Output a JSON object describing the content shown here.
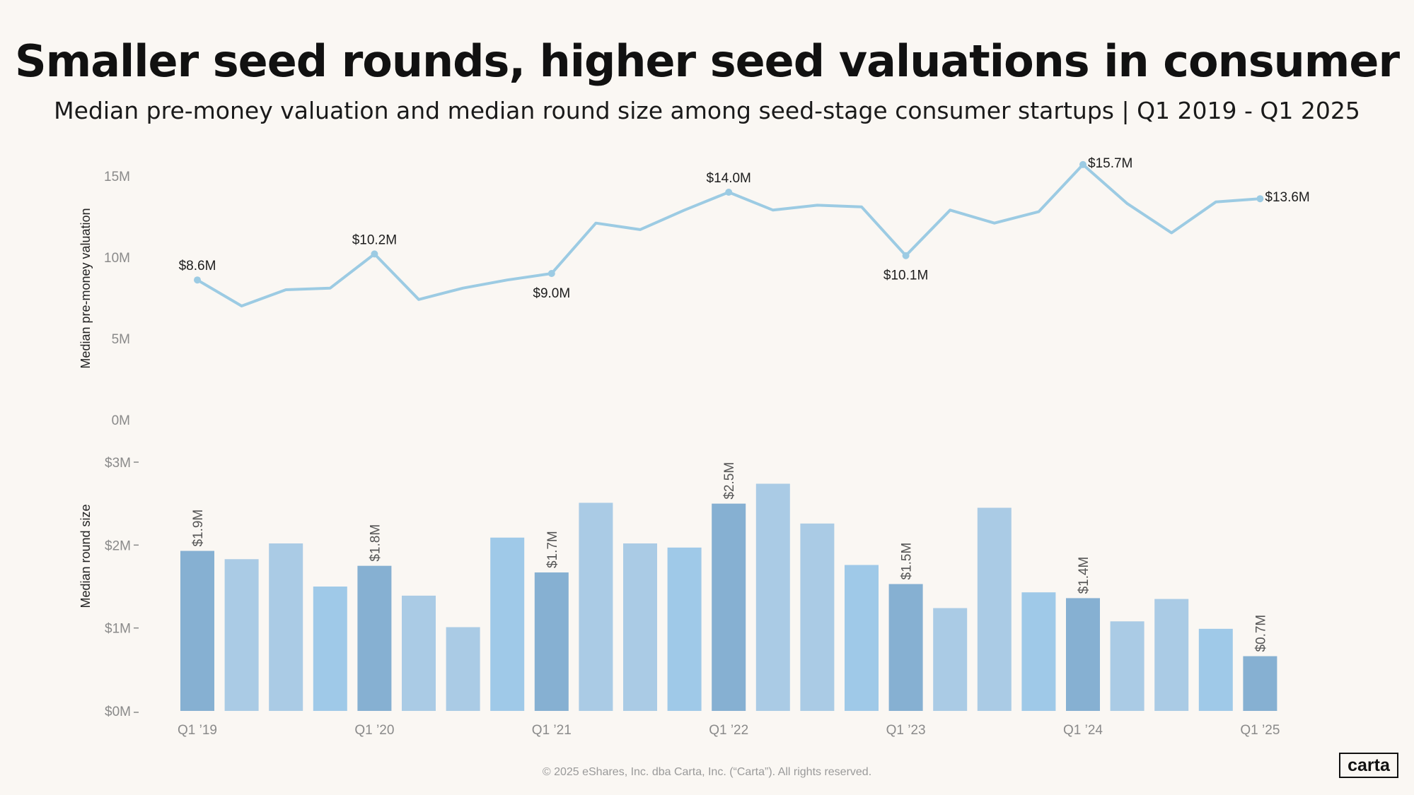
{
  "title": "Smaller seed rounds, higher seed valuations in consumer",
  "subtitle": "Median pre-money valuation and median round size among seed-stage consumer startups | Q1 2019 - Q1 2025",
  "footer": "© 2025 eShares, Inc. dba Carta, Inc. (“Carta”). All rights reserved.",
  "logo": "carta",
  "colors": {
    "line": "#9ccbe3",
    "bar_q1": "#86b0d2",
    "bar_a": "#aacbe5",
    "bar_b": "#9fc9e8"
  },
  "chart_data": [
    {
      "type": "line",
      "title": "Median pre-money valuation",
      "ylabel": "Median pre-money valuation",
      "ylim": [
        0,
        15000000
      ],
      "yticks": [
        {
          "value": 0,
          "label": "0M"
        },
        {
          "value": 5000000,
          "label": "5M"
        },
        {
          "value": 10000000,
          "label": "10M"
        },
        {
          "value": 15000000,
          "label": "15M"
        }
      ],
      "x": [
        "Q1 2019",
        "Q2 2019",
        "Q3 2019",
        "Q4 2019",
        "Q1 2020",
        "Q2 2020",
        "Q3 2020",
        "Q4 2020",
        "Q1 2021",
        "Q2 2021",
        "Q3 2021",
        "Q4 2021",
        "Q1 2022",
        "Q2 2022",
        "Q3 2022",
        "Q4 2022",
        "Q1 2023",
        "Q2 2023",
        "Q3 2023",
        "Q4 2023",
        "Q1 2024",
        "Q2 2024",
        "Q3 2024",
        "Q4 2024",
        "Q1 2025"
      ],
      "values": [
        8600000,
        7000000,
        8000000,
        8100000,
        10200000,
        7400000,
        8100000,
        8600000,
        9000000,
        12100000,
        11700000,
        12900000,
        14000000,
        12900000,
        13200000,
        13100000,
        10100000,
        12900000,
        12100000,
        12800000,
        15700000,
        13300000,
        11500000,
        13400000,
        13600000
      ],
      "point_labels": [
        {
          "index": 0,
          "label": "$8.6M",
          "pos": "above"
        },
        {
          "index": 4,
          "label": "$10.2M",
          "pos": "above"
        },
        {
          "index": 8,
          "label": "$9.0M",
          "pos": "below"
        },
        {
          "index": 12,
          "label": "$14.0M",
          "pos": "above"
        },
        {
          "index": 16,
          "label": "$10.1M",
          "pos": "below"
        },
        {
          "index": 20,
          "label": "$15.7M",
          "pos": "right"
        },
        {
          "index": 24,
          "label": "$13.6M",
          "pos": "right"
        }
      ]
    },
    {
      "type": "bar",
      "title": "Median round size",
      "ylabel": "Median round size",
      "ylim": [
        0,
        3000000
      ],
      "yticks": [
        {
          "value": 0,
          "label": "$0M"
        },
        {
          "value": 1000000,
          "label": "$1M"
        },
        {
          "value": 2000000,
          "label": "$2M"
        },
        {
          "value": 3000000,
          "label": "$3M"
        }
      ],
      "categories": [
        "Q1 2019",
        "Q2 2019",
        "Q3 2019",
        "Q4 2019",
        "Q1 2020",
        "Q2 2020",
        "Q3 2020",
        "Q4 2020",
        "Q1 2021",
        "Q2 2021",
        "Q3 2021",
        "Q4 2021",
        "Q1 2022",
        "Q2 2022",
        "Q3 2022",
        "Q4 2022",
        "Q1 2023",
        "Q2 2023",
        "Q3 2023",
        "Q4 2023",
        "Q1 2024",
        "Q2 2024",
        "Q3 2024",
        "Q4 2024",
        "Q1 2025"
      ],
      "values": [
        1930000,
        1830000,
        2020000,
        1500000,
        1750000,
        1390000,
        1010000,
        2090000,
        1670000,
        2510000,
        2020000,
        1970000,
        2500000,
        2740000,
        2260000,
        1760000,
        1530000,
        1240000,
        2450000,
        1430000,
        1360000,
        1080000,
        1350000,
        990000,
        660000
      ],
      "tones": [
        "q1",
        "a",
        "a",
        "b",
        "q1",
        "a",
        "a",
        "b",
        "q1",
        "a",
        "a",
        "b",
        "q1",
        "a",
        "a",
        "b",
        "q1",
        "a",
        "a",
        "b",
        "q1",
        "a",
        "a",
        "b",
        "q1"
      ],
      "bar_labels": [
        {
          "index": 0,
          "label": "$1.9M"
        },
        {
          "index": 4,
          "label": "$1.8M"
        },
        {
          "index": 8,
          "label": "$1.7M"
        },
        {
          "index": 12,
          "label": "$2.5M"
        },
        {
          "index": 16,
          "label": "$1.5M"
        },
        {
          "index": 20,
          "label": "$1.4M"
        },
        {
          "index": 24,
          "label": "$0.7M"
        }
      ],
      "xticks": [
        {
          "index": 0,
          "label": "Q1 ’19"
        },
        {
          "index": 4,
          "label": "Q1 ’20"
        },
        {
          "index": 8,
          "label": "Q1 ’21"
        },
        {
          "index": 12,
          "label": "Q1 ’22"
        },
        {
          "index": 16,
          "label": "Q1 ’23"
        },
        {
          "index": 20,
          "label": "Q1 ’24"
        },
        {
          "index": 24,
          "label": "Q1 ’25"
        }
      ]
    }
  ]
}
